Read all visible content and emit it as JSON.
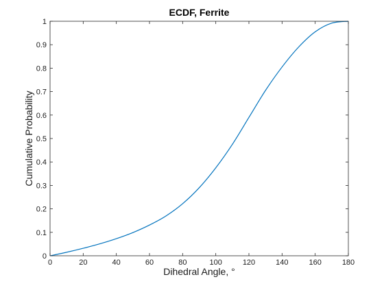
{
  "chart_data": {
    "type": "line",
    "title": "ECDF, Ferrite",
    "xlabel": "Dihedral Angle, °",
    "ylabel": "Cumulative Probability",
    "xlim": [
      0,
      180
    ],
    "ylim": [
      0,
      1
    ],
    "xticks": [
      0,
      20,
      40,
      60,
      80,
      100,
      120,
      140,
      160,
      180
    ],
    "yticks": [
      0,
      0.1,
      0.2,
      0.3,
      0.4,
      0.5,
      0.6,
      0.7,
      0.8,
      0.9,
      1
    ],
    "grid": false,
    "line_color": "#0072bd",
    "series": [
      {
        "x": [
          0,
          10,
          20,
          30,
          40,
          50,
          60,
          70,
          80,
          90,
          100,
          110,
          120,
          130,
          140,
          150,
          160,
          170,
          180
        ],
        "y": [
          0,
          0.015,
          0.032,
          0.051,
          0.073,
          0.099,
          0.131,
          0.17,
          0.222,
          0.29,
          0.375,
          0.475,
          0.59,
          0.705,
          0.805,
          0.89,
          0.955,
          0.992,
          1.0
        ]
      }
    ]
  }
}
